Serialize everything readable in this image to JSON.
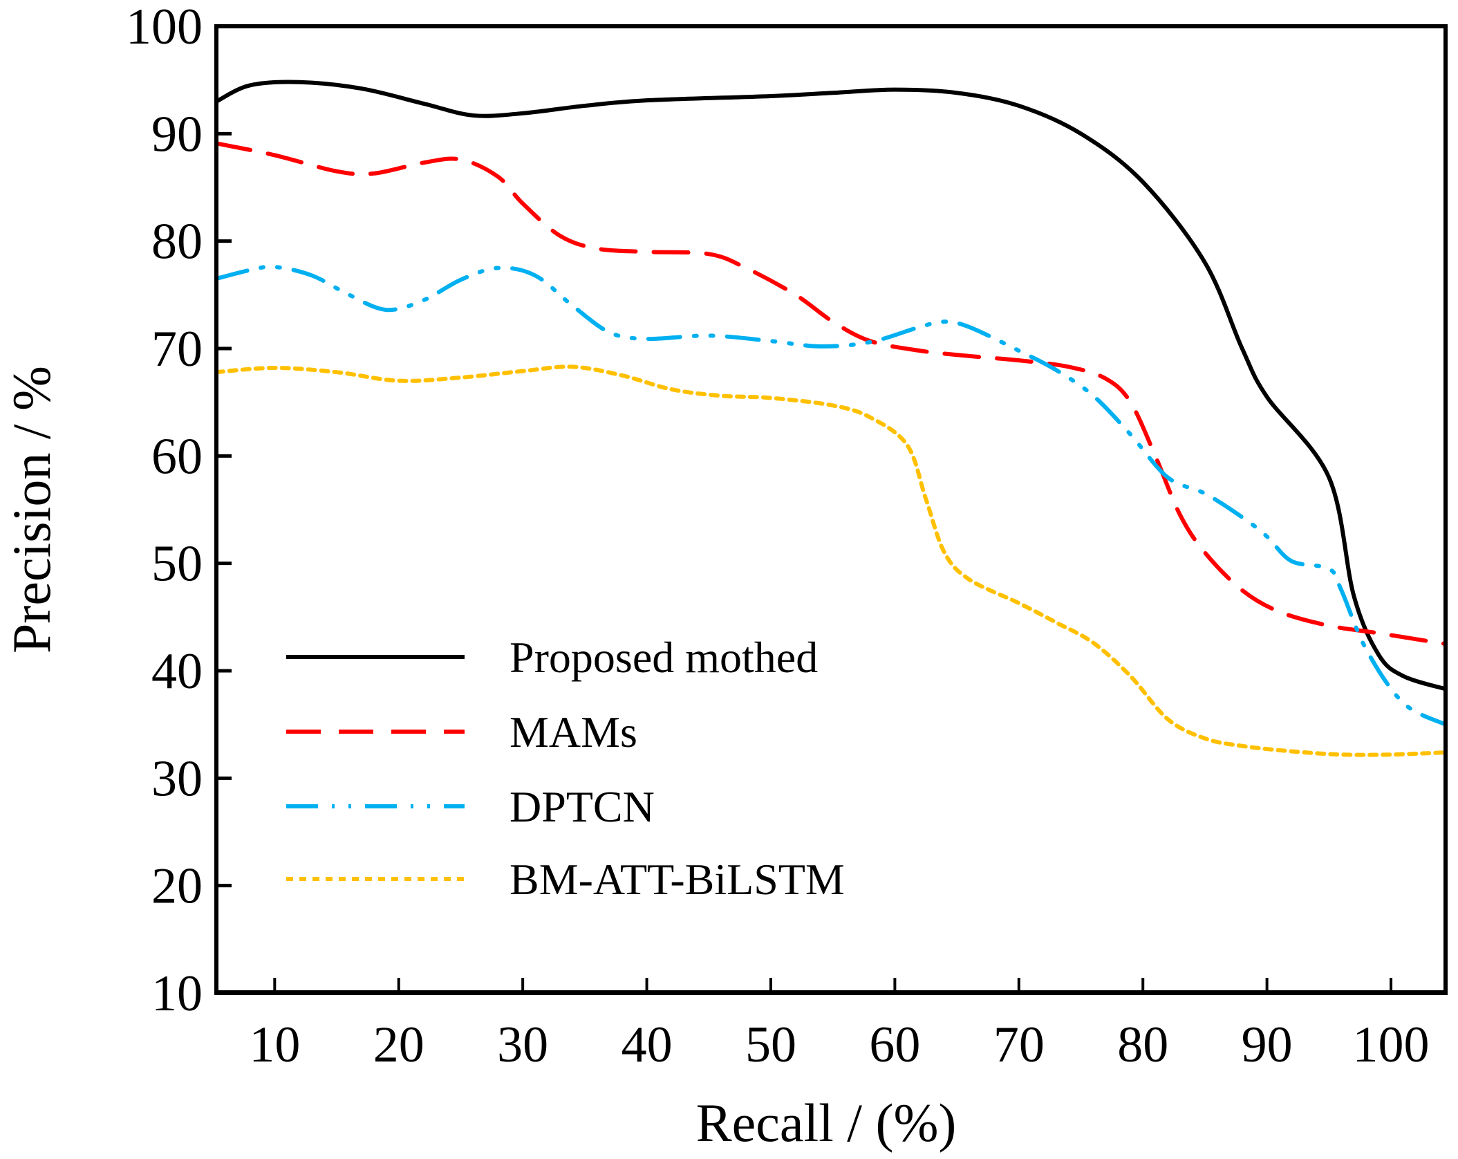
{
  "chart_data": {
    "type": "line",
    "title": "",
    "xlabel": "Recall / (%)",
    "ylabel": "Precision / %",
    "xlim": [
      5.3,
      104.4
    ],
    "ylim": [
      10,
      100
    ],
    "xticks": [
      10,
      20,
      30,
      40,
      50,
      60,
      70,
      80,
      90,
      100
    ],
    "yticks": [
      10,
      20,
      30,
      40,
      50,
      60,
      70,
      80,
      90,
      100
    ],
    "xtick_labels": [
      "10",
      "20",
      "30",
      "40",
      "50",
      "60",
      "70",
      "80",
      "90",
      "100"
    ],
    "ytick_labels": [
      "10",
      "20",
      "30",
      "40",
      "50",
      "60",
      "70",
      "80",
      "90",
      "100"
    ],
    "grid": false,
    "legend_position": "lower-left",
    "series": [
      {
        "name": "Proposed mothed",
        "color": "#000000",
        "style": "solid",
        "x": [
          5.3,
          8,
          12,
          17,
          22,
          26,
          30,
          35,
          40,
          50,
          55,
          60,
          65,
          70,
          75,
          80,
          85,
          88,
          90,
          95,
          97,
          99,
          101,
          104.4
        ],
        "y": [
          93,
          94.5,
          94.8,
          94.2,
          92.8,
          91.7,
          91.9,
          92.6,
          93.1,
          93.5,
          93.8,
          94.1,
          93.8,
          92.6,
          90,
          85.5,
          78,
          70,
          65.5,
          58,
          47,
          41.5,
          39.5,
          38.3
        ]
      },
      {
        "name": "MAMs",
        "color": "#ff0000",
        "style": "dashed",
        "x": [
          5.3,
          10,
          15,
          18,
          22,
          25,
          28,
          30,
          33,
          36,
          40,
          45,
          48,
          52,
          55,
          58,
          62,
          66,
          70,
          74,
          77,
          79,
          81,
          83,
          85,
          88,
          91,
          95,
          99,
          104.4
        ],
        "y": [
          89.1,
          88,
          86.5,
          86.3,
          87.3,
          87.6,
          86,
          83.5,
          80.5,
          79.3,
          79,
          78.8,
          77.5,
          75,
          72.5,
          70.7,
          69.8,
          69.3,
          68.9,
          68.3,
          67.2,
          65,
          60,
          54.5,
          51,
          47.5,
          45.5,
          44.2,
          43.5,
          42.5
        ]
      },
      {
        "name": "DPTCN",
        "color": "#00b0f0",
        "style": "dash-dot-dot",
        "x": [
          5.3,
          8,
          10,
          13,
          16,
          19,
          22,
          25,
          28,
          31,
          34,
          37,
          40,
          45,
          50,
          54,
          58,
          62,
          64,
          66,
          70,
          73,
          76,
          79,
          82,
          85,
          88,
          90,
          92,
          95,
          96,
          98,
          101,
          104.4
        ],
        "y": [
          76.5,
          77.3,
          77.6,
          76.8,
          75,
          73.6,
          74.5,
          76.4,
          77.5,
          76.8,
          74,
          71.5,
          70.9,
          71.2,
          70.7,
          70.2,
          70.6,
          72,
          72.5,
          72,
          69.8,
          68,
          65.6,
          62,
          58,
          56.5,
          54.3,
          52.5,
          50.2,
          49.5,
          47.5,
          42,
          37,
          35
        ]
      },
      {
        "name": "BM-ATT-BiLSTM",
        "color": "#ffc000",
        "style": "dotted",
        "x": [
          5.3,
          10,
          15,
          20,
          25,
          30,
          34,
          38,
          42,
          46,
          50,
          55,
          58,
          61,
          62.5,
          64,
          66,
          70,
          73,
          76,
          79,
          82,
          85,
          88,
          92,
          96,
          100,
          104.4
        ],
        "y": [
          67.8,
          68.2,
          67.8,
          67,
          67.3,
          67.9,
          68.3,
          67.5,
          66.2,
          65.6,
          65.4,
          64.7,
          63.6,
          61,
          56,
          51,
          48.5,
          46.3,
          44.5,
          42.6,
          39.5,
          35.5,
          33.7,
          33,
          32.5,
          32.2,
          32.2,
          32.4
        ]
      }
    ]
  }
}
